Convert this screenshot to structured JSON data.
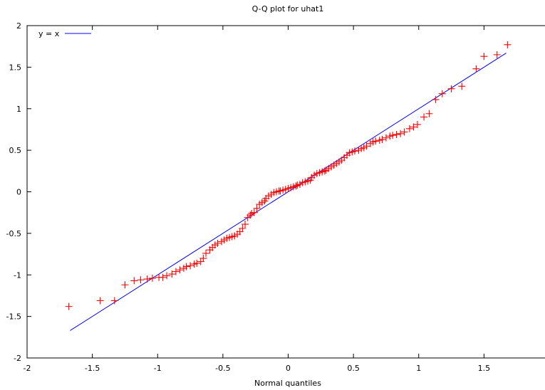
{
  "chart_data": {
    "type": "scatter",
    "title": "Q-Q plot for uhat1",
    "xlabel": "Normal quantiles",
    "ylabel": "",
    "xlim": [
      -2,
      2
    ],
    "ylim": [
      -2,
      2
    ],
    "x_ticks": [
      "-2",
      "-1.5",
      "-1",
      "-0.5",
      "0",
      "0.5",
      "1",
      "1.5"
    ],
    "y_ticks": [
      "-2",
      "-1.5",
      "-1",
      "-0.5",
      "0",
      "0.5",
      "1",
      "1.5",
      "2"
    ],
    "legend_position": "top-left",
    "colors": {
      "points": "#ff0000",
      "reference_line": "#0000ff",
      "frame": "#000000"
    },
    "series": [
      {
        "kind": "reference-line",
        "name": "y = x",
        "points": [
          [
            -1.67,
            -1.67
          ],
          [
            1.67,
            1.67
          ]
        ]
      },
      {
        "kind": "points",
        "marker": "plus",
        "points": [
          [
            -1.68,
            -1.38
          ],
          [
            -1.44,
            -1.31
          ],
          [
            -1.33,
            -1.31
          ],
          [
            -1.25,
            -1.12
          ],
          [
            -1.18,
            -1.07
          ],
          [
            -1.13,
            -1.06
          ],
          [
            -1.08,
            -1.05
          ],
          [
            -1.04,
            -1.04
          ],
          [
            -0.99,
            -1.03
          ],
          [
            -0.96,
            -1.03
          ],
          [
            -0.93,
            -1.01
          ],
          [
            -0.89,
            -0.99
          ],
          [
            -0.86,
            -0.96
          ],
          [
            -0.83,
            -0.94
          ],
          [
            -0.8,
            -0.92
          ],
          [
            -0.78,
            -0.9
          ],
          [
            -0.75,
            -0.89
          ],
          [
            -0.72,
            -0.87
          ],
          [
            -0.7,
            -0.86
          ],
          [
            -0.67,
            -0.84
          ],
          [
            -0.65,
            -0.8
          ],
          [
            -0.63,
            -0.74
          ],
          [
            -0.6,
            -0.7
          ],
          [
            -0.58,
            -0.67
          ],
          [
            -0.56,
            -0.64
          ],
          [
            -0.54,
            -0.62
          ],
          [
            -0.51,
            -0.6
          ],
          [
            -0.49,
            -0.58
          ],
          [
            -0.47,
            -0.56
          ],
          [
            -0.45,
            -0.55
          ],
          [
            -0.43,
            -0.54
          ],
          [
            -0.41,
            -0.53
          ],
          [
            -0.39,
            -0.51
          ],
          [
            -0.37,
            -0.48
          ],
          [
            -0.35,
            -0.44
          ],
          [
            -0.33,
            -0.39
          ],
          [
            -0.31,
            -0.31
          ],
          [
            -0.29,
            -0.28
          ],
          [
            -0.28,
            -0.26
          ],
          [
            -0.26,
            -0.25
          ],
          [
            -0.24,
            -0.2
          ],
          [
            -0.22,
            -0.15
          ],
          [
            -0.2,
            -0.13
          ],
          [
            -0.18,
            -0.11
          ],
          [
            -0.17,
            -0.08
          ],
          [
            -0.15,
            -0.05
          ],
          [
            -0.13,
            -0.03
          ],
          [
            -0.11,
            -0.01
          ],
          [
            -0.09,
            0.0
          ],
          [
            -0.07,
            0.01
          ],
          [
            -0.06,
            0.01
          ],
          [
            -0.04,
            0.02
          ],
          [
            -0.02,
            0.03
          ],
          [
            0.0,
            0.04
          ],
          [
            0.02,
            0.05
          ],
          [
            0.04,
            0.06
          ],
          [
            0.06,
            0.07
          ],
          [
            0.07,
            0.08
          ],
          [
            0.09,
            0.09
          ],
          [
            0.11,
            0.11
          ],
          [
            0.13,
            0.12
          ],
          [
            0.15,
            0.13
          ],
          [
            0.17,
            0.14
          ],
          [
            0.18,
            0.17
          ],
          [
            0.2,
            0.2
          ],
          [
            0.22,
            0.22
          ],
          [
            0.24,
            0.23
          ],
          [
            0.26,
            0.24
          ],
          [
            0.28,
            0.25
          ],
          [
            0.29,
            0.26
          ],
          [
            0.31,
            0.28
          ],
          [
            0.33,
            0.3
          ],
          [
            0.35,
            0.32
          ],
          [
            0.37,
            0.34
          ],
          [
            0.39,
            0.36
          ],
          [
            0.41,
            0.38
          ],
          [
            0.43,
            0.41
          ],
          [
            0.45,
            0.44
          ],
          [
            0.47,
            0.47
          ],
          [
            0.49,
            0.48
          ],
          [
            0.51,
            0.49
          ],
          [
            0.54,
            0.5
          ],
          [
            0.56,
            0.52
          ],
          [
            0.58,
            0.53
          ],
          [
            0.6,
            0.55
          ],
          [
            0.63,
            0.58
          ],
          [
            0.65,
            0.6
          ],
          [
            0.67,
            0.61
          ],
          [
            0.7,
            0.62
          ],
          [
            0.72,
            0.63
          ],
          [
            0.75,
            0.65
          ],
          [
            0.78,
            0.67
          ],
          [
            0.8,
            0.68
          ],
          [
            0.83,
            0.69
          ],
          [
            0.86,
            0.7
          ],
          [
            0.89,
            0.72
          ],
          [
            0.93,
            0.76
          ],
          [
            0.96,
            0.78
          ],
          [
            0.99,
            0.81
          ],
          [
            1.04,
            0.9
          ],
          [
            1.08,
            0.94
          ],
          [
            1.13,
            1.11
          ],
          [
            1.18,
            1.18
          ],
          [
            1.25,
            1.24
          ],
          [
            1.33,
            1.27
          ],
          [
            1.44,
            1.48
          ],
          [
            1.5,
            1.63
          ],
          [
            1.6,
            1.65
          ],
          [
            1.68,
            1.77
          ]
        ]
      }
    ]
  }
}
